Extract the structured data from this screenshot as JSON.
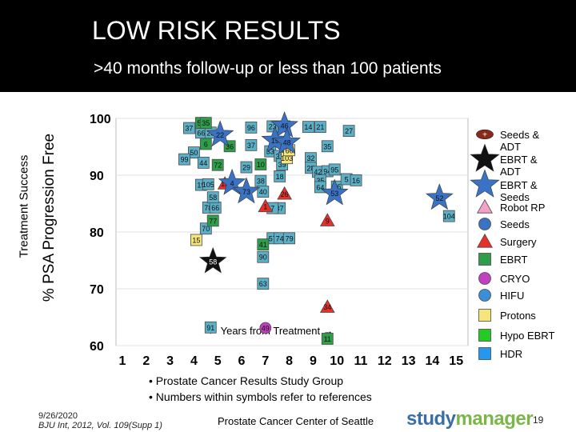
{
  "header": {
    "title": "LOW RISK RESULTS",
    "subtitle": ">40 months follow-up or less than 100 patients"
  },
  "axis_labels": {
    "outer": "Treatment Success",
    "inner": "% PSA Progression Free"
  },
  "chart_data": {
    "type": "scatter",
    "title": "LOW RISK RESULTS",
    "xlabel": "← Years from Treatment →",
    "ylabel": "% PSA Progression Free",
    "xlim": [
      0.5,
      15.5
    ],
    "ylim": [
      60,
      100
    ],
    "x_ticks": [
      "1",
      "2",
      "3",
      "4",
      "5",
      "6",
      "7",
      "8",
      "9",
      "10",
      "11",
      "12",
      "13",
      "14",
      "15"
    ],
    "y_ticks": [
      "60",
      "70",
      "80",
      "90",
      "100"
    ],
    "series": [
      {
        "name": "Seeds",
        "marker": "square",
        "color": "#5bb0c8",
        "points": [
          {
            "x": 3.8,
            "y": 98.3,
            "label": "37"
          },
          {
            "x": 4.3,
            "y": 97.5,
            "label": "66"
          },
          {
            "x": 4.7,
            "y": 97.5,
            "label": "25"
          },
          {
            "x": 4.0,
            "y": 94.0,
            "label": "50"
          },
          {
            "x": 3.6,
            "y": 92.8,
            "label": "99"
          },
          {
            "x": 4.4,
            "y": 92.2,
            "label": "44"
          },
          {
            "x": 4.3,
            "y": 88.3,
            "label": "19"
          },
          {
            "x": 4.6,
            "y": 88.4,
            "label": "105"
          },
          {
            "x": 4.6,
            "y": 84.3,
            "label": "78"
          },
          {
            "x": 4.9,
            "y": 84.3,
            "label": "66"
          },
          {
            "x": 4.8,
            "y": 86.1,
            "label": "58"
          },
          {
            "x": 4.5,
            "y": 80.6,
            "label": "70"
          },
          {
            "x": 6.4,
            "y": 98.4,
            "label": "96"
          },
          {
            "x": 6.4,
            "y": 95.3,
            "label": "37"
          },
          {
            "x": 6.2,
            "y": 91.4,
            "label": "29"
          },
          {
            "x": 7.2,
            "y": 94.2,
            "label": "33"
          },
          {
            "x": 7.6,
            "y": 93.4,
            "label": "31"
          },
          {
            "x": 7.7,
            "y": 91.9,
            "label": "39"
          },
          {
            "x": 6.8,
            "y": 89.0,
            "label": "38"
          },
          {
            "x": 7.6,
            "y": 89.8,
            "label": "18"
          },
          {
            "x": 6.9,
            "y": 87.1,
            "label": "40"
          },
          {
            "x": 7.6,
            "y": 84.2,
            "label": "37"
          },
          {
            "x": 7.3,
            "y": 84.2,
            "label": "7"
          },
          {
            "x": 7.3,
            "y": 78.9,
            "label": "57"
          },
          {
            "x": 7.6,
            "y": 78.9,
            "label": "74"
          },
          {
            "x": 8.0,
            "y": 78.9,
            "label": "79"
          },
          {
            "x": 6.9,
            "y": 75.6,
            "label": "90"
          },
          {
            "x": 6.9,
            "y": 70.9,
            "label": "63"
          },
          {
            "x": 4.7,
            "y": 63.2,
            "label": "91"
          },
          {
            "x": 7.3,
            "y": 98.6,
            "label": "23"
          },
          {
            "x": 7.8,
            "y": 98.6,
            "label": "16"
          },
          {
            "x": 8.8,
            "y": 98.5,
            "label": "14"
          },
          {
            "x": 9.3,
            "y": 98.5,
            "label": "21"
          },
          {
            "x": 9.6,
            "y": 95.1,
            "label": "35"
          },
          {
            "x": 8.9,
            "y": 93.0,
            "label": "32"
          },
          {
            "x": 8.9,
            "y": 91.3,
            "label": "28"
          },
          {
            "x": 9.2,
            "y": 90.6,
            "label": "42"
          },
          {
            "x": 9.6,
            "y": 90.7,
            "label": "94"
          },
          {
            "x": 9.9,
            "y": 91.0,
            "label": "95"
          },
          {
            "x": 9.3,
            "y": 89.1,
            "label": "35"
          },
          {
            "x": 9.3,
            "y": 87.9,
            "label": "64"
          },
          {
            "x": 10.0,
            "y": 88.0,
            "label": "56"
          },
          {
            "x": 10.5,
            "y": 97.8,
            "label": "27"
          },
          {
            "x": 10.4,
            "y": 89.3,
            "label": "5"
          },
          {
            "x": 10.8,
            "y": 89.1,
            "label": "16"
          },
          {
            "x": 14.7,
            "y": 82.8,
            "label": "104"
          }
        ]
      },
      {
        "name": "Surgery",
        "marker": "triangle",
        "color": "#e8302a",
        "points": [
          {
            "x": 5.3,
            "y": 88.5,
            "label": "13"
          },
          {
            "x": 9.6,
            "y": 82.0,
            "label": "9"
          },
          {
            "x": 9.6,
            "y": 66.8,
            "label": "34"
          },
          {
            "x": 7.0,
            "y": 84.5,
            "label": "1"
          },
          {
            "x": 7.8,
            "y": 86.7,
            "label": "26"
          }
        ]
      },
      {
        "name": "EBRT",
        "marker": "square",
        "color": "#2e9e4a",
        "points": [
          {
            "x": 4.3,
            "y": 99.2,
            "label": "55"
          },
          {
            "x": 4.5,
            "y": 99.2,
            "label": "35"
          },
          {
            "x": 4.5,
            "y": 95.5,
            "label": "6"
          },
          {
            "x": 5.5,
            "y": 95.1,
            "label": "36"
          },
          {
            "x": 5.0,
            "y": 91.8,
            "label": "72"
          },
          {
            "x": 6.8,
            "y": 91.9,
            "label": "10"
          },
          {
            "x": 4.8,
            "y": 82.0,
            "label": "77"
          },
          {
            "x": 6.9,
            "y": 77.8,
            "label": "41"
          },
          {
            "x": 9.6,
            "y": 61.2,
            "label": "11"
          }
        ]
      },
      {
        "name": "Protons",
        "marker": "square",
        "color": "#f5e67a",
        "points": [
          {
            "x": 4.1,
            "y": 78.6,
            "label": "15"
          },
          {
            "x": 7.9,
            "y": 93.0,
            "label": "103"
          },
          {
            "x": 8.0,
            "y": 94.4,
            "label": "60"
          }
        ]
      },
      {
        "name": "Seeds + ADT",
        "marker": "oval",
        "color": "#8b2a16",
        "points": []
      },
      {
        "name": "EBRT & ADT",
        "marker": "star",
        "color": "#111111",
        "points": [
          {
            "x": 4.8,
            "y": 74.8,
            "label": "58"
          }
        ]
      },
      {
        "name": "EBRT & Seeds",
        "marker": "star",
        "color": "#3a72c4",
        "points": [
          {
            "x": 7.8,
            "y": 98.7,
            "label": "46"
          },
          {
            "x": 7.4,
            "y": 96.1,
            "label": "19"
          },
          {
            "x": 7.9,
            "y": 95.8,
            "label": "48"
          },
          {
            "x": 5.1,
            "y": 97.1,
            "label": "22"
          },
          {
            "x": 5.6,
            "y": 88.6,
            "label": "4"
          },
          {
            "x": 6.2,
            "y": 87.1,
            "label": "73"
          },
          {
            "x": 9.9,
            "y": 86.8,
            "label": "53"
          },
          {
            "x": 14.3,
            "y": 86.0,
            "label": "52"
          }
        ]
      },
      {
        "name": "CRYO",
        "marker": "circle",
        "color": "#c040c0",
        "points": [
          {
            "x": 7.0,
            "y": 63.1,
            "label": "49"
          }
        ]
      },
      {
        "name": "Robot RP",
        "marker": "triangle",
        "color": "#f4a0c8",
        "points": []
      },
      {
        "name": "HIFU",
        "marker": "circle",
        "color": "#3a8fd8",
        "points": []
      },
      {
        "name": "Hypo EBRT",
        "marker": "square",
        "color": "#22cc22",
        "points": []
      },
      {
        "name": "HDR",
        "marker": "square",
        "color": "#2299ee",
        "points": []
      }
    ]
  },
  "legend": [
    {
      "label": "Seeds &\nADT",
      "marker": "oval",
      "color": "#8b2a16",
      "inner": "+"
    },
    {
      "label": "EBRT &\nADT",
      "marker": "star",
      "color": "#111111",
      "inner": ""
    },
    {
      "label": "EBRT &\nSeeds",
      "marker": "star",
      "color": "#3a72c4",
      "inner": ""
    },
    {
      "label": "Robot RP",
      "marker": "triangle",
      "color": "#f4a0c8",
      "inner": ""
    },
    {
      "label": "Seeds",
      "marker": "circle",
      "color": "#3a72c4",
      "inner": ""
    },
    {
      "label": "Surgery",
      "marker": "triangle",
      "color": "#e8302a",
      "inner": ""
    },
    {
      "label": "EBRT",
      "marker": "square",
      "color": "#2e9e4a",
      "inner": ""
    },
    {
      "label": "CRYO",
      "marker": "circle",
      "color": "#c040c0",
      "inner": ""
    },
    {
      "label": "HIFU",
      "marker": "circle",
      "color": "#3a8fd8",
      "inner": ""
    },
    {
      "label": "Protons",
      "marker": "square",
      "color": "#f5e67a",
      "inner": ""
    },
    {
      "label": "Hypo EBRT",
      "marker": "square",
      "color": "#22cc22",
      "inner": ""
    },
    {
      "label": "HDR",
      "marker": "square",
      "color": "#2299ee",
      "inner": ""
    }
  ],
  "bullets": [
    "• Prostate Cancer Results Study Group",
    "• Numbers within symbols refer to references"
  ],
  "footer": {
    "date": "9/26/2020",
    "reference": "BJU Int, 2012, Vol. 109(Supp 1)",
    "center": "Prostate Cancer Center of Seattle",
    "logo_main": "study",
    "logo_accent": "manager",
    "page": "19"
  }
}
